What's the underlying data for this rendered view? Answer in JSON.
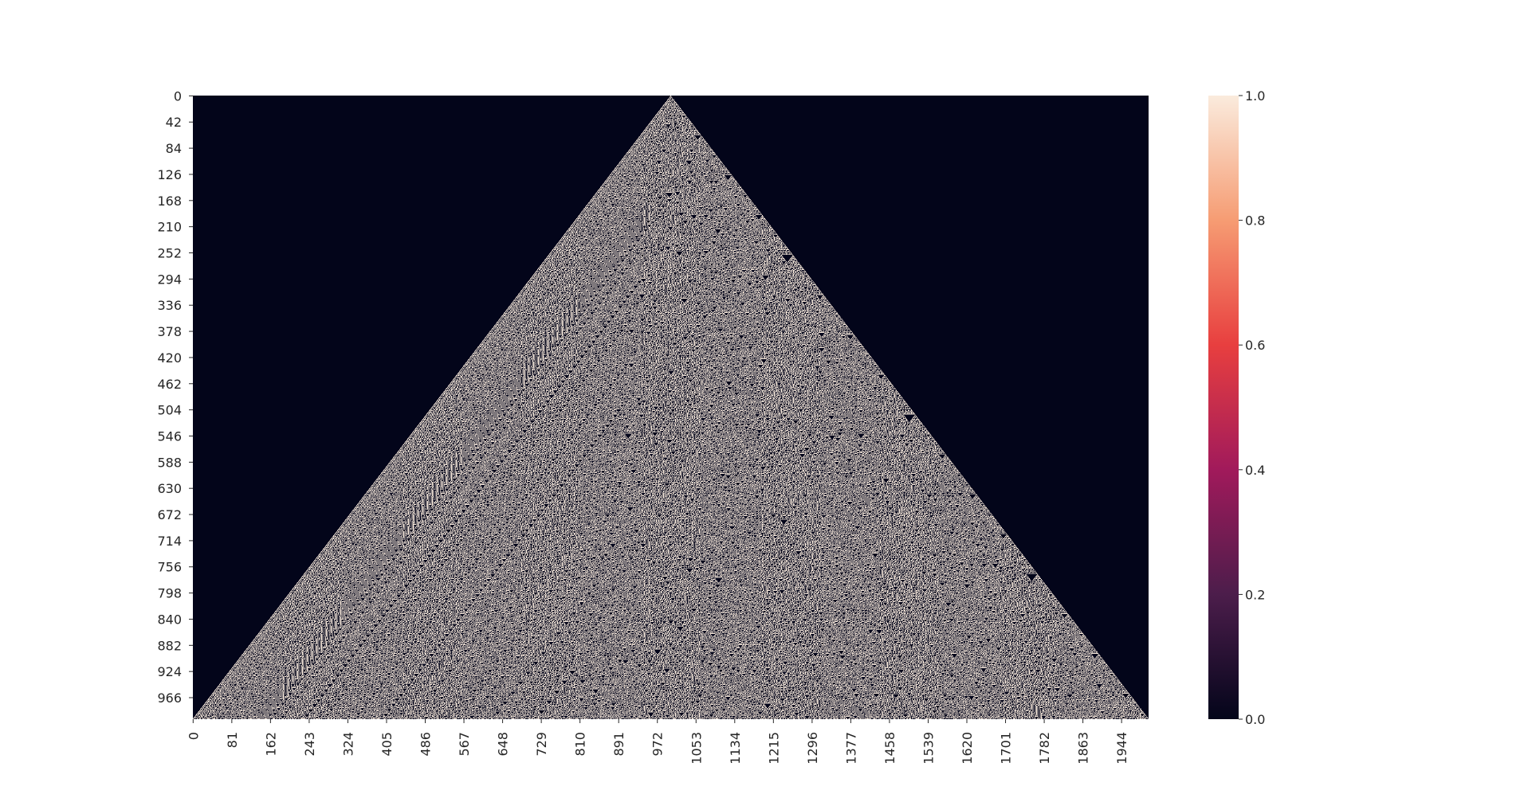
{
  "chart_data": {
    "type": "heatmap",
    "title": "",
    "xlabel": "",
    "ylabel": "",
    "description_rule": "Sierpinski-like triangle pattern: binary values (0 dark, 1 light)",
    "rows": 1001,
    "cols": 2001,
    "value_range": [
      0.0,
      1.0
    ],
    "x_tick_labels": [
      "0",
      "81",
      "162",
      "243",
      "324",
      "405",
      "486",
      "567",
      "648",
      "729",
      "810",
      "891",
      "972",
      "1053",
      "1134",
      "1215",
      "1296",
      "1377",
      "1458",
      "1539",
      "1620",
      "1701",
      "1782",
      "1863",
      "1944"
    ],
    "y_tick_labels": [
      "0",
      "42",
      "84",
      "126",
      "168",
      "210",
      "252",
      "294",
      "336",
      "378",
      "420",
      "462",
      "504",
      "546",
      "588",
      "630",
      "672",
      "714",
      "756",
      "798",
      "840",
      "882",
      "924",
      "966"
    ],
    "colorbar": {
      "ticks": [
        "0.0",
        "0.2",
        "0.4",
        "0.6",
        "0.8",
        "1.0"
      ],
      "colors": [
        "#03051a",
        "#4c1d4b",
        "#a11a5b",
        "#e83f3f",
        "#f69c73",
        "#faebdd"
      ]
    },
    "grid": false
  }
}
